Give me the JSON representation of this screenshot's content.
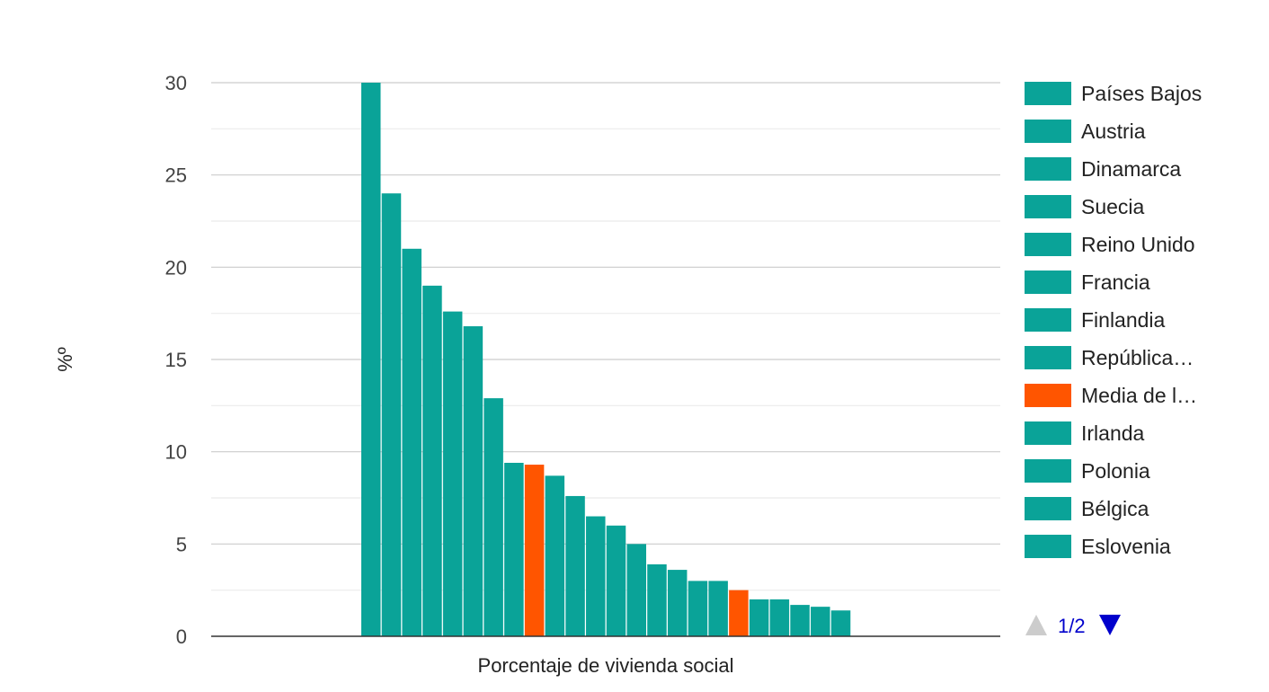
{
  "chart_data": {
    "type": "bar",
    "xlabel": "Porcentaje de vivienda social",
    "ylabel": "%º",
    "ylim": [
      0,
      30
    ],
    "yticks": [
      0,
      5,
      10,
      15,
      20,
      25,
      30
    ],
    "grid": true,
    "legend_position": "right",
    "series": [
      {
        "name": "Países Bajos",
        "value": 30.0,
        "color": "#0aa398"
      },
      {
        "name": "Austria",
        "value": 24.0,
        "color": "#0aa398"
      },
      {
        "name": "Dinamarca",
        "value": 21.0,
        "color": "#0aa398"
      },
      {
        "name": "Suecia",
        "value": 19.0,
        "color": "#0aa398"
      },
      {
        "name": "Reino Unido",
        "value": 17.6,
        "color": "#0aa398"
      },
      {
        "name": "Francia",
        "value": 16.8,
        "color": "#0aa398"
      },
      {
        "name": "Finlandia",
        "value": 12.9,
        "color": "#0aa398"
      },
      {
        "name": "República…",
        "value": 9.4,
        "color": "#0aa398"
      },
      {
        "name": "Media de l…",
        "value": 9.3,
        "color": "#ff5500"
      },
      {
        "name": "Irlanda",
        "value": 8.7,
        "color": "#0aa398"
      },
      {
        "name": "Polonia",
        "value": 7.6,
        "color": "#0aa398"
      },
      {
        "name": "Bélgica",
        "value": 6.5,
        "color": "#0aa398"
      },
      {
        "name": "Eslovenia",
        "value": 6.0,
        "color": "#0aa398"
      },
      {
        "name": "",
        "value": 5.0,
        "color": "#0aa398"
      },
      {
        "name": "",
        "value": 3.9,
        "color": "#0aa398"
      },
      {
        "name": "",
        "value": 3.6,
        "color": "#0aa398"
      },
      {
        "name": "",
        "value": 3.0,
        "color": "#0aa398"
      },
      {
        "name": "",
        "value": 3.0,
        "color": "#0aa398"
      },
      {
        "name": "",
        "value": 2.5,
        "color": "#ff5500"
      },
      {
        "name": "",
        "value": 2.0,
        "color": "#0aa398"
      },
      {
        "name": "",
        "value": 2.0,
        "color": "#0aa398"
      },
      {
        "name": "",
        "value": 1.7,
        "color": "#0aa398"
      },
      {
        "name": "",
        "value": 1.6,
        "color": "#0aa398"
      },
      {
        "name": "",
        "value": 1.4,
        "color": "#0aa398"
      }
    ],
    "legend_visible_count": 13
  },
  "pager": {
    "label": "1/2",
    "prev_icon": "triangle-up-icon",
    "next_icon": "triangle-down-icon",
    "prev_color": "#cccccc",
    "next_color": "#0000cc"
  }
}
